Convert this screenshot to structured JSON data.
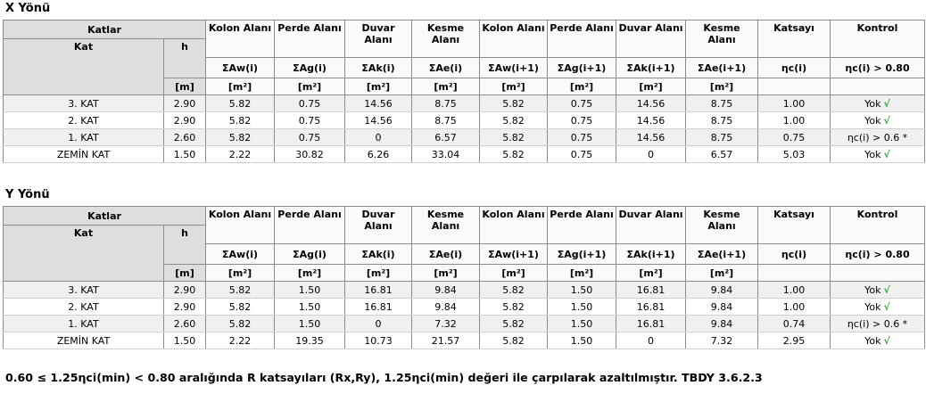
{
  "sections": [
    {
      "title": "X Yönü",
      "header": {
        "katlar": "Katlar",
        "kat": "Kat",
        "h": "h",
        "h_unit": "[m]",
        "columns": [
          {
            "name": "Kolon Alanı",
            "symbol": "ΣAw(i)",
            "unit": "[m²]"
          },
          {
            "name": "Perde Alanı",
            "symbol": "ΣAg(i)",
            "unit": "[m²]"
          },
          {
            "name": "Duvar Alanı",
            "symbol": "ΣAk(i)",
            "unit": "[m²]"
          },
          {
            "name": "Kesme Alanı",
            "symbol": "ΣAe(i)",
            "unit": "[m²]"
          },
          {
            "name": "Kolon Alanı",
            "symbol": "ΣAw(i+1)",
            "unit": "[m²]"
          },
          {
            "name": "Perde Alanı",
            "symbol": "ΣAg(i+1)",
            "unit": "[m²]"
          },
          {
            "name": "Duvar Alanı",
            "symbol": "ΣAk(i+1)",
            "unit": "[m²]"
          },
          {
            "name": "Kesme Alanı",
            "symbol": "ΣAe(i+1)",
            "unit": "[m²]"
          },
          {
            "name": "Katsayı",
            "symbol": "ηc(i)"
          },
          {
            "name": "Kontrol",
            "symbol": "ηc(i) > 0.80"
          }
        ]
      },
      "rows": [
        {
          "kat": "3. KAT",
          "h": "2.90",
          "values": [
            "5.82",
            "0.75",
            "14.56",
            "8.75",
            "5.82",
            "0.75",
            "14.56",
            "8.75"
          ],
          "katsayi": "1.00",
          "kontrol": "Yok",
          "check": "√"
        },
        {
          "kat": "2. KAT",
          "h": "2.90",
          "values": [
            "5.82",
            "0.75",
            "14.56",
            "8.75",
            "5.82",
            "0.75",
            "14.56",
            "8.75"
          ],
          "katsayi": "1.00",
          "kontrol": "Yok",
          "check": "√"
        },
        {
          "kat": "1. KAT",
          "h": "2.60",
          "values": [
            "5.82",
            "0.75",
            "0",
            "6.57",
            "5.82",
            "0.75",
            "14.56",
            "8.75"
          ],
          "katsayi": "0.75",
          "kontrol": "ηc(i) > 0.6 *"
        },
        {
          "kat": "ZEMİN KAT",
          "h": "1.50",
          "values": [
            "2.22",
            "30.82",
            "6.26",
            "33.04",
            "5.82",
            "0.75",
            "0",
            "6.57"
          ],
          "katsayi": "5.03",
          "kontrol": "Yok",
          "check": "√"
        }
      ]
    },
    {
      "title": "Y Yönü",
      "header": {
        "katlar": "Katlar",
        "kat": "Kat",
        "h": "h",
        "h_unit": "[m]",
        "columns": [
          {
            "name": "Kolon Alanı",
            "symbol": "ΣAw(i)",
            "unit": "[m²]"
          },
          {
            "name": "Perde Alanı",
            "symbol": "ΣAg(i)",
            "unit": "[m²]"
          },
          {
            "name": "Duvar Alanı",
            "symbol": "ΣAk(i)",
            "unit": "[m²]"
          },
          {
            "name": "Kesme Alanı",
            "symbol": "ΣAe(i)",
            "unit": "[m²]"
          },
          {
            "name": "Kolon Alanı",
            "symbol": "ΣAw(i+1)",
            "unit": "[m²]"
          },
          {
            "name": "Perde Alanı",
            "symbol": "ΣAg(i+1)",
            "unit": "[m²]"
          },
          {
            "name": "Duvar Alanı",
            "symbol": "ΣAk(i+1)",
            "unit": "[m²]"
          },
          {
            "name": "Kesme Alanı",
            "symbol": "ΣAe(i+1)",
            "unit": "[m²]"
          },
          {
            "name": "Katsayı",
            "symbol": "ηc(i)"
          },
          {
            "name": "Kontrol",
            "symbol": "ηc(i) > 0.80"
          }
        ]
      },
      "rows": [
        {
          "kat": "3. KAT",
          "h": "2.90",
          "values": [
            "5.82",
            "1.50",
            "16.81",
            "9.84",
            "5.82",
            "1.50",
            "16.81",
            "9.84"
          ],
          "katsayi": "1.00",
          "kontrol": "Yok",
          "check": "√"
        },
        {
          "kat": "2. KAT",
          "h": "2.90",
          "values": [
            "5.82",
            "1.50",
            "16.81",
            "9.84",
            "5.82",
            "1.50",
            "16.81",
            "9.84"
          ],
          "katsayi": "1.00",
          "kontrol": "Yok",
          "check": "√"
        },
        {
          "kat": "1. KAT",
          "h": "2.60",
          "values": [
            "5.82",
            "1.50",
            "0",
            "7.32",
            "5.82",
            "1.50",
            "16.81",
            "9.84"
          ],
          "katsayi": "0.74",
          "kontrol": "ηc(i) > 0.6 *"
        },
        {
          "kat": "ZEMİN KAT",
          "h": "1.50",
          "values": [
            "2.22",
            "19.35",
            "10.73",
            "21.57",
            "5.82",
            "1.50",
            "0",
            "7.32"
          ],
          "katsayi": "2.95",
          "kontrol": "Yok",
          "check": "√"
        }
      ]
    }
  ],
  "footer": "0.60 ≤ 1.25ηci(min) < 0.80 aralığında R katsayıları (Rx,Ry), 1.25ηci(min) değeri ile çarpılarak azaltılmıştır. TBDY 3.6.2.3"
}
